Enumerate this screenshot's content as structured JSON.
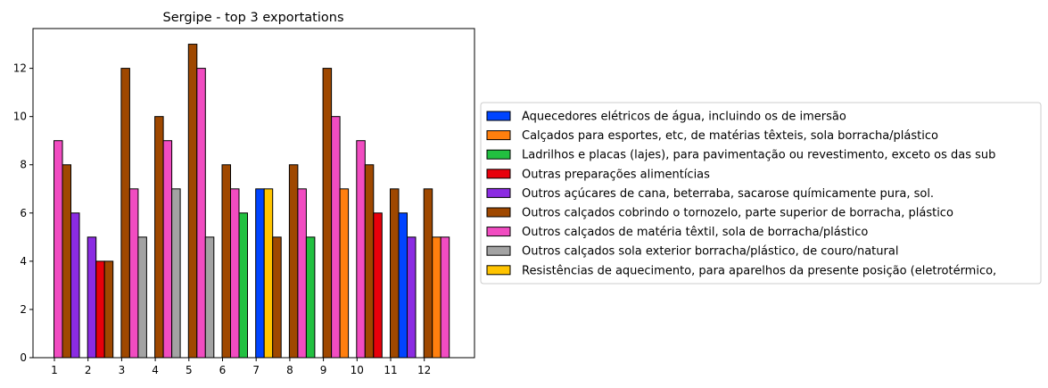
{
  "chart_data": {
    "type": "bar",
    "title": "Sergipe - top 3 exportations",
    "xlabel": "",
    "ylabel": "",
    "ylim": [
      0,
      13.65
    ],
    "yticks": [
      0,
      2,
      4,
      6,
      8,
      10,
      12
    ],
    "grid": false,
    "legend_position": "right",
    "categories": [
      "1",
      "2",
      "3",
      "4",
      "5",
      "6",
      "7",
      "8",
      "9",
      "10",
      "11",
      "12"
    ],
    "series": [
      {
        "name": "Aquecedores elétricos de água, incluindo os de imersão",
        "color": "#0044ff",
        "values": [
          null,
          null,
          null,
          null,
          null,
          null,
          7,
          null,
          null,
          null,
          6,
          null
        ]
      },
      {
        "name": "Calçados para esportes, etc, de matérias têxteis, sola borracha/plástico",
        "color": "#ff7f0e",
        "values": [
          null,
          null,
          null,
          null,
          null,
          null,
          null,
          null,
          7,
          null,
          null,
          5
        ]
      },
      {
        "name": "Ladrilhos e placas (lajes), para pavimentação ou revestimento, exceto os das sub",
        "color": "#22c040",
        "values": [
          null,
          null,
          null,
          null,
          null,
          6,
          null,
          5,
          null,
          null,
          null,
          null
        ]
      },
      {
        "name": "Outras preparações alimentícias",
        "color": "#e8000b",
        "values": [
          null,
          4,
          null,
          null,
          null,
          null,
          null,
          null,
          null,
          6,
          null,
          null
        ]
      },
      {
        "name": "Outros açúcares de cana, beterraba, sacarose químicamente pura, sol.",
        "color": "#8b2be2",
        "values": [
          6,
          5,
          null,
          null,
          null,
          null,
          null,
          null,
          null,
          null,
          5,
          null
        ]
      },
      {
        "name": "Outros calçados cobrindo o tornozelo, parte superior de borracha, plástico",
        "color": "#9f4800",
        "values": [
          8,
          4,
          12,
          10,
          13,
          8,
          5,
          8,
          12,
          8,
          7,
          7
        ]
      },
      {
        "name": "Outros calçados de matéria têxtil, sola de borracha/plástico",
        "color": "#f14cc1",
        "values": [
          9,
          null,
          7,
          9,
          12,
          7,
          null,
          7,
          10,
          9,
          null,
          5
        ]
      },
      {
        "name": "Outros calçados sola exterior borracha/plástico, de couro/natural",
        "color": "#a3a3a3",
        "values": [
          null,
          null,
          5,
          7,
          5,
          null,
          null,
          null,
          null,
          null,
          null,
          null
        ]
      },
      {
        "name": "Resistências de aquecimento, para aparelhos da presente posição (eletrotérmico,",
        "color": "#ffc400",
        "values": [
          null,
          null,
          null,
          null,
          null,
          null,
          7,
          null,
          null,
          null,
          null,
          null
        ]
      }
    ],
    "bars": [
      {
        "category": "1",
        "series": "Outros calçados de matéria têxtil, sola de borracha/plástico",
        "value": 9
      },
      {
        "category": "1",
        "series": "Outros calçados cobrindo o tornozelo, parte superior de borracha, plástico",
        "value": 8
      },
      {
        "category": "1",
        "series": "Outros açúcares de cana, beterraba, sacarose químicamente pura, sol.",
        "value": 6
      },
      {
        "category": "2",
        "series": "Outros açúcares de cana, beterraba, sacarose químicamente pura, sol.",
        "value": 5
      },
      {
        "category": "2",
        "series": "Outras preparações alimentícias",
        "value": 4
      },
      {
        "category": "2",
        "series": "Outros calçados cobrindo o tornozelo, parte superior de borracha, plástico",
        "value": 4
      },
      {
        "category": "3",
        "series": "Outros calçados cobrindo o tornozelo, parte superior de borracha, plástico",
        "value": 12
      },
      {
        "category": "3",
        "series": "Outros calçados de matéria têxtil, sola de borracha/plástico",
        "value": 7
      },
      {
        "category": "3",
        "series": "Outros calçados sola exterior borracha/plástico, de couro/natural",
        "value": 5
      },
      {
        "category": "4",
        "series": "Outros calçados cobrindo o tornozelo, parte superior de borracha, plástico",
        "value": 10
      },
      {
        "category": "4",
        "series": "Outros calçados de matéria têxtil, sola de borracha/plástico",
        "value": 9
      },
      {
        "category": "4",
        "series": "Outros calçados sola exterior borracha/plástico, de couro/natural",
        "value": 7
      },
      {
        "category": "5",
        "series": "Outros calçados cobrindo o tornozelo, parte superior de borracha, plástico",
        "value": 13
      },
      {
        "category": "5",
        "series": "Outros calçados de matéria têxtil, sola de borracha/plástico",
        "value": 12
      },
      {
        "category": "5",
        "series": "Outros calçados sola exterior borracha/plástico, de couro/natural",
        "value": 5
      },
      {
        "category": "6",
        "series": "Outros calçados cobrindo o tornozelo, parte superior de borracha, plástico",
        "value": 8
      },
      {
        "category": "6",
        "series": "Outros calçados de matéria têxtil, sola de borracha/plástico",
        "value": 7
      },
      {
        "category": "6",
        "series": "Ladrilhos e placas (lajes), para pavimentação ou revestimento, exceto os das sub",
        "value": 6
      },
      {
        "category": "7",
        "series": "Aquecedores elétricos de água, incluindo os de imersão",
        "value": 7
      },
      {
        "category": "7",
        "series": "Resistências de aquecimento, para aparelhos da presente posição (eletrotérmico,",
        "value": 7
      },
      {
        "category": "7",
        "series": "Outros calçados cobrindo o tornozelo, parte superior de borracha, plástico",
        "value": 5
      },
      {
        "category": "8",
        "series": "Outros calçados cobrindo o tornozelo, parte superior de borracha, plástico",
        "value": 8
      },
      {
        "category": "8",
        "series": "Outros calçados de matéria têxtil, sola de borracha/plástico",
        "value": 7
      },
      {
        "category": "8",
        "series": "Ladrilhos e placas (lajes), para pavimentação ou revestimento, exceto os das sub",
        "value": 5
      },
      {
        "category": "9",
        "series": "Outros calçados cobrindo o tornozelo, parte superior de borracha, plástico",
        "value": 12
      },
      {
        "category": "9",
        "series": "Outros calçados de matéria têxtil, sola de borracha/plástico",
        "value": 10
      },
      {
        "category": "9",
        "series": "Calçados para esportes, etc, de matérias têxteis, sola borracha/plástico",
        "value": 7
      },
      {
        "category": "10",
        "series": "Outros calçados de matéria têxtil, sola de borracha/plástico",
        "value": 9
      },
      {
        "category": "10",
        "series": "Outros calçados cobrindo o tornozelo, parte superior de borracha, plástico",
        "value": 8
      },
      {
        "category": "10",
        "series": "Outras preparações alimentícias",
        "value": 6
      },
      {
        "category": "11",
        "series": "Outros calçados cobrindo o tornozelo, parte superior de borracha, plástico",
        "value": 7
      },
      {
        "category": "11",
        "series": "Aquecedores elétricos de água, incluindo os de imersão",
        "value": 6
      },
      {
        "category": "11",
        "series": "Outros açúcares de cana, beterraba, sacarose químicamente pura, sol.",
        "value": 5
      },
      {
        "category": "12",
        "series": "Outros calçados cobrindo o tornozelo, parte superior de borracha, plástico",
        "value": 7
      },
      {
        "category": "12",
        "series": "Calçados para esportes, etc, de matérias têxteis, sola borracha/plástico",
        "value": 5
      },
      {
        "category": "12",
        "series": "Outros calçados de matéria têxtil, sola de borracha/plástico",
        "value": 5
      }
    ]
  }
}
